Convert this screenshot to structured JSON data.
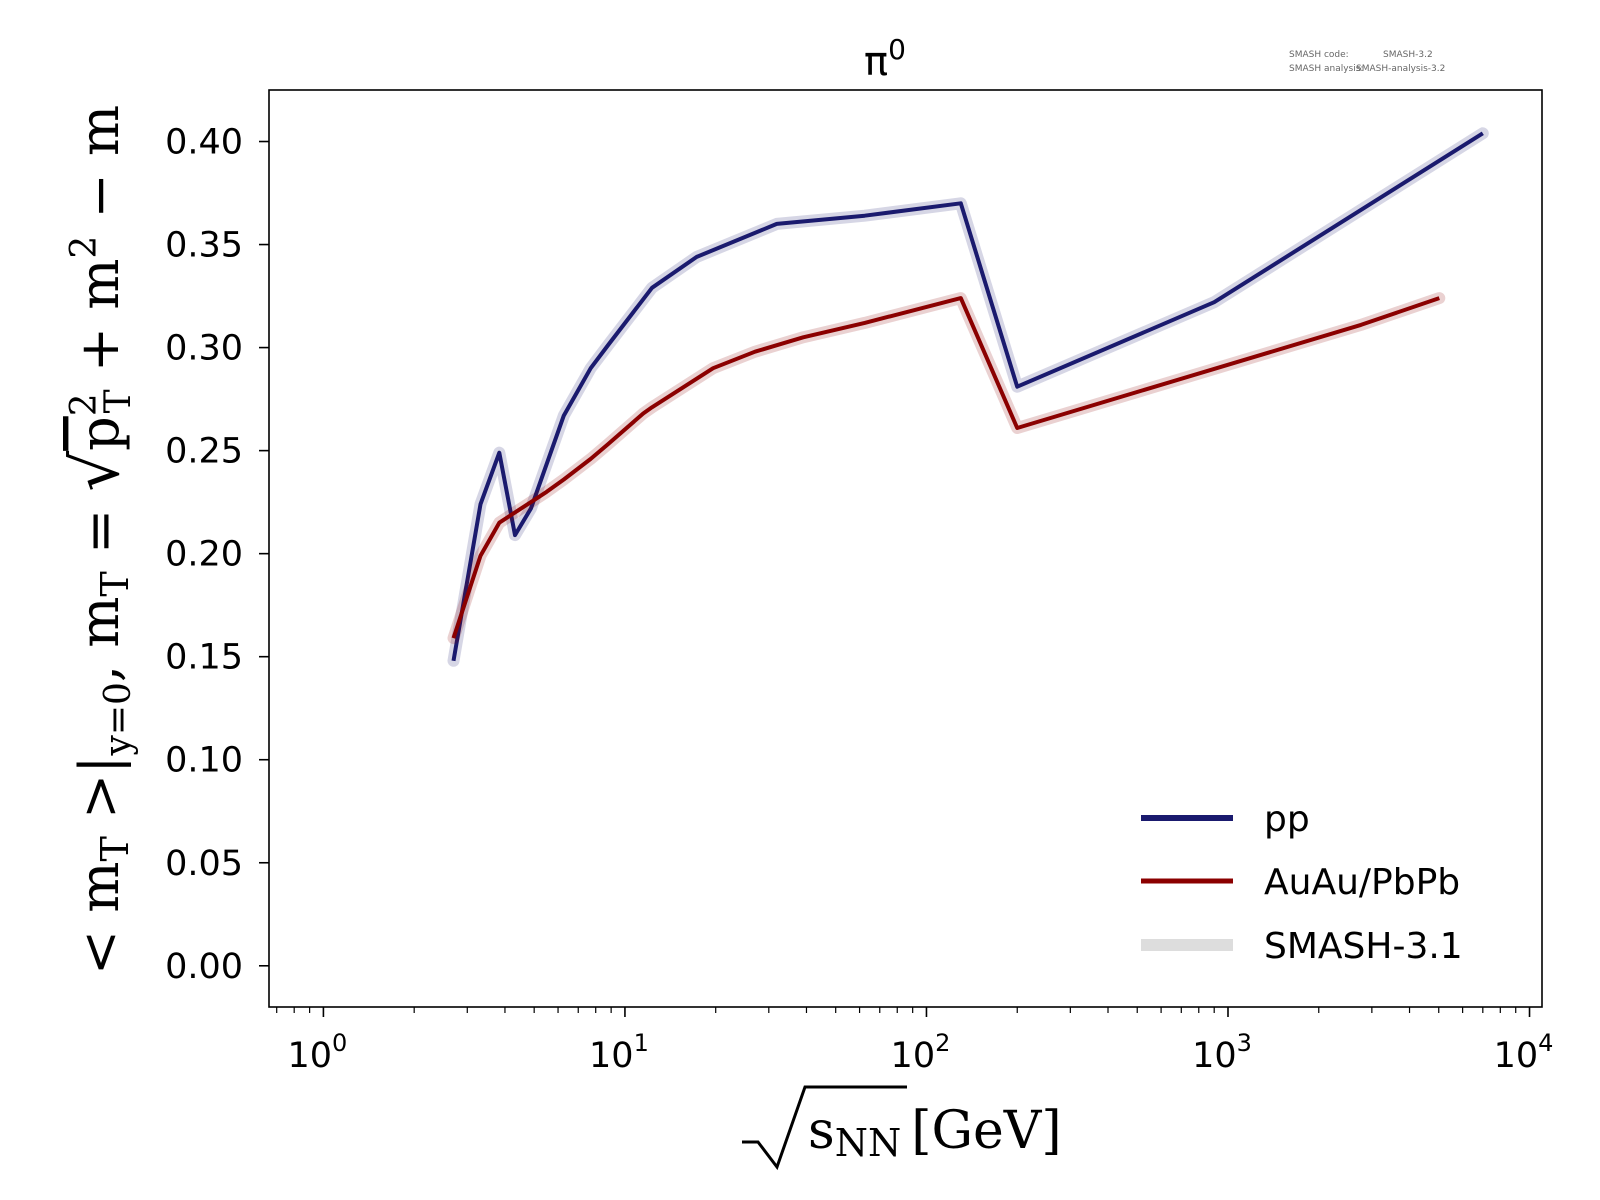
{
  "chart_data": {
    "type": "line",
    "title": "π⁰",
    "title_main": "π",
    "title_sup": "0",
    "xlabel": "√sNN [GeV]",
    "xlabel_parts": {
      "sub": "NN",
      "s": "s",
      "unit": "[GeV]"
    },
    "ylabel": "< mT >|y=0, mT = √(pT² + m²) − m",
    "ylabel_parts": {
      "lt": "< m",
      "T": "T",
      "gt": " >",
      "bar": "|",
      "cond": "y=0",
      "comma": ", m",
      "eq": " = ",
      "p": "p",
      "sq": "2",
      "plus": " + m",
      "minus": " − m"
    },
    "x_scale": "log",
    "xlim": [
      0.66,
      11000
    ],
    "ylim": [
      -0.02,
      0.425
    ],
    "x_ticks": [
      {
        "base": "10",
        "exp": "0",
        "value": 1
      },
      {
        "base": "10",
        "exp": "1",
        "value": 10
      },
      {
        "base": "10",
        "exp": "2",
        "value": 100
      },
      {
        "base": "10",
        "exp": "3",
        "value": 1000
      },
      {
        "base": "10",
        "exp": "4",
        "value": 10000
      }
    ],
    "y_ticks": [
      "0.00",
      "0.05",
      "0.10",
      "0.15",
      "0.20",
      "0.25",
      "0.30",
      "0.35",
      "0.40"
    ],
    "y_tick_values": [
      0,
      0.05,
      0.1,
      0.15,
      0.2,
      0.25,
      0.3,
      0.35,
      0.4
    ],
    "series": [
      {
        "name": "pp",
        "color": "#1a1a6e",
        "x": [
          2.7,
          3.32,
          3.83,
          4.32,
          4.88,
          6.27,
          7.7,
          8.77,
          12.3,
          17.3,
          31.9,
          62.4,
          130,
          200,
          900,
          7000
        ],
        "y": [
          0.148,
          0.224,
          0.249,
          0.209,
          0.222,
          0.267,
          0.29,
          0.301,
          0.329,
          0.344,
          0.36,
          0.364,
          0.37,
          0.281,
          0.322,
          0.404
        ]
      },
      {
        "name": "AuAu/PbPb",
        "color": "#8b0000",
        "x": [
          2.7,
          3.32,
          3.83,
          4.32,
          4.88,
          5.5,
          6.27,
          7.7,
          8.77,
          11.5,
          12.3,
          19.6,
          27,
          39,
          62.4,
          130,
          200,
          2760,
          5020
        ],
        "y": [
          0.159,
          0.199,
          0.215,
          0.22,
          0.225,
          0.23,
          0.236,
          0.246,
          0.253,
          0.268,
          0.271,
          0.29,
          0.298,
          0.305,
          0.312,
          0.324,
          0.261,
          0.311,
          0.324
        ]
      }
    ],
    "legend": {
      "placement": "lower-right",
      "entries": [
        {
          "label": "pp",
          "color": "#1a1a6e"
        },
        {
          "label": "AuAu/PbPb",
          "color": "#8b0000"
        },
        {
          "label": "SMASH-3.1",
          "color": "#dddddd"
        }
      ]
    },
    "annotation": {
      "line1_key": "SMASH code:",
      "line1_val": "SMASH-3.2",
      "line2_key": "SMASH analysis:",
      "line2_val": "SMASH-analysis-3.2"
    },
    "grid": false
  }
}
